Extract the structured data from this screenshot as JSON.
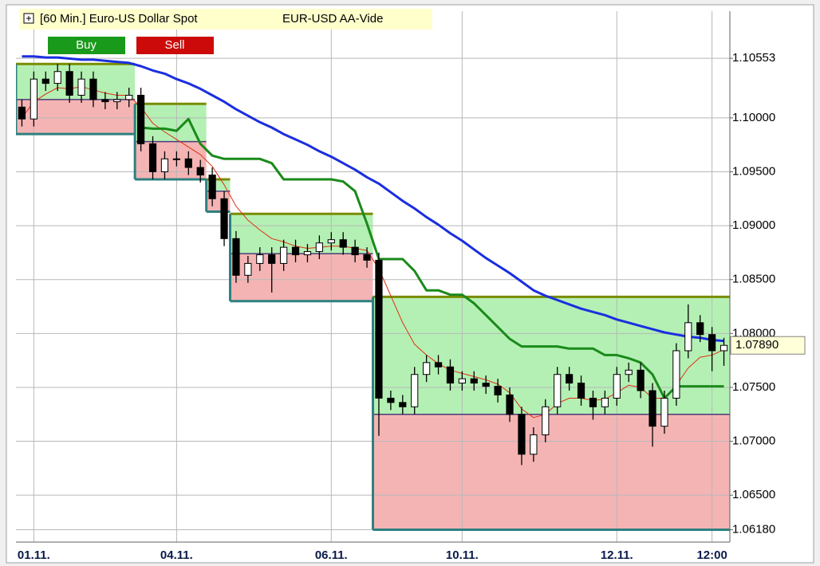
{
  "buttons": [
    "Buy",
    "Sell"
  ],
  "chart_data": {
    "type": "candlestick",
    "title": "[60 Min.] Euro-US Dollar Spot",
    "subtitle": "EUR-USD AA-Vide",
    "categories": [
      null,
      "01.11.",
      null,
      null,
      null,
      null,
      null,
      null,
      null,
      null,
      null,
      null,
      null,
      "04.11.",
      null,
      null,
      null,
      null,
      null,
      null,
      null,
      null,
      null,
      null,
      null,
      null,
      "06.11.",
      null,
      null,
      null,
      null,
      null,
      null,
      null,
      null,
      null,
      null,
      "10.11.",
      null,
      null,
      null,
      null,
      null,
      null,
      null,
      null,
      null,
      null,
      null,
      null,
      "12.11.",
      null,
      null,
      null,
      null,
      null,
      null,
      null,
      "12:00",
      null
    ],
    "open": [
      1.101,
      1.0999,
      1.1036,
      1.1032,
      1.1043,
      1.1021,
      1.1036,
      1.1017,
      1.1015,
      1.1017,
      1.1021,
      1.0976,
      1.095,
      1.0962,
      1.0962,
      1.0954,
      1.0947,
      1.0925,
      1.0888,
      1.0854,
      1.0865,
      1.0873,
      1.0865,
      1.088,
      1.0873,
      1.0876,
      1.0884,
      1.0887,
      1.088,
      1.0873,
      1.0868,
      1.074,
      1.0736,
      1.0732,
      1.0762,
      1.0773,
      1.0769,
      1.0754,
      1.0758,
      1.0754,
      1.0751,
      1.0743,
      1.0725,
      1.0688,
      1.0706,
      1.0732,
      1.0762,
      1.0754,
      1.074,
      1.0732,
      1.074,
      1.0762,
      1.0766,
      1.0747,
      1.0714,
      1.074,
      1.0784,
      1.081,
      1.0799,
      1.0784
    ],
    "high": [
      1.1017,
      1.1043,
      1.1043,
      1.105,
      1.105,
      1.1043,
      1.1043,
      1.1024,
      1.1024,
      1.1028,
      1.1028,
      1.0983,
      1.0969,
      1.0969,
      1.0969,
      1.0961,
      1.0954,
      1.0932,
      1.0895,
      1.0872,
      1.088,
      1.088,
      1.0887,
      1.0887,
      1.0883,
      1.0891,
      1.0894,
      1.0894,
      1.0887,
      1.088,
      1.0875,
      1.0747,
      1.0743,
      1.0769,
      1.078,
      1.078,
      1.0776,
      1.0765,
      1.0765,
      1.0761,
      1.0758,
      1.075,
      1.0732,
      1.0713,
      1.0739,
      1.0769,
      1.0769,
      1.0761,
      1.0747,
      1.0747,
      1.0769,
      1.0773,
      1.0773,
      1.0754,
      1.0747,
      1.0791,
      1.0827,
      1.0817,
      1.0806,
      1.0796
    ],
    "low": [
      1.0992,
      1.0992,
      1.1025,
      1.1025,
      1.1014,
      1.1014,
      1.101,
      1.1008,
      1.1008,
      1.101,
      1.0969,
      1.0943,
      1.0943,
      1.0955,
      1.0947,
      1.094,
      1.0918,
      1.0881,
      1.0847,
      1.0847,
      1.0858,
      1.0838,
      1.0858,
      1.0866,
      1.0866,
      1.0869,
      1.0877,
      1.0873,
      1.0866,
      1.0861,
      1.0705,
      1.0729,
      1.0725,
      1.0725,
      1.0755,
      1.0762,
      1.0747,
      1.0747,
      1.0747,
      1.0744,
      1.0736,
      1.0718,
      1.0678,
      1.0681,
      1.0699,
      1.0725,
      1.0747,
      1.0733,
      1.072,
      1.0725,
      1.0733,
      1.0755,
      1.074,
      1.0695,
      1.0707,
      1.0733,
      1.0777,
      1.0792,
      1.0765,
      1.077
    ],
    "close": [
      1.0999,
      1.1036,
      1.1032,
      1.1043,
      1.1021,
      1.1036,
      1.1017,
      1.1015,
      1.1017,
      1.1021,
      1.0976,
      1.095,
      1.0962,
      1.0962,
      1.0954,
      1.0947,
      1.0925,
      1.0888,
      1.0854,
      1.0865,
      1.0873,
      1.0865,
      1.088,
      1.0873,
      1.0876,
      1.0884,
      1.0887,
      1.088,
      1.0873,
      1.0868,
      1.074,
      1.0736,
      1.0732,
      1.0762,
      1.0773,
      1.0769,
      1.0754,
      1.0758,
      1.0754,
      1.0751,
      1.0743,
      1.0725,
      1.0688,
      1.0706,
      1.0732,
      1.0762,
      1.0754,
      1.074,
      1.0732,
      1.074,
      1.0762,
      1.0766,
      1.0747,
      1.0714,
      1.074,
      1.0784,
      1.081,
      1.0799,
      1.0784,
      1.0789
    ],
    "up_color": "#ffffff",
    "down_color": "#000000",
    "lines": [
      {
        "color": "#e03010",
        "width": 1,
        "values": [
          1.1,
          1.1015,
          1.1022,
          1.1028,
          1.1027,
          1.1029,
          1.1026,
          1.1023,
          1.1021,
          1.1021,
          1.101,
          1.0995,
          1.0987,
          1.098,
          1.0973,
          1.0966,
          1.0955,
          1.0938,
          1.0918,
          1.0905,
          1.0896,
          1.0888,
          1.0885,
          1.0881,
          1.0879,
          1.088,
          1.0881,
          1.0881,
          1.0879,
          1.0877,
          1.086,
          1.0835,
          1.081,
          1.079,
          1.078,
          1.0772,
          1.0766,
          1.0763,
          1.076,
          1.0757,
          1.0753,
          1.0745,
          1.073,
          1.0722,
          1.0725,
          1.0735,
          1.074,
          1.074,
          1.0738,
          1.0739,
          1.0745,
          1.0752,
          1.075,
          1.074,
          1.074,
          1.0752,
          1.0768,
          1.0778,
          1.078,
          1.0785
        ]
      },
      {
        "color": "#1a8a1a",
        "width": 3,
        "values": [
          null,
          null,
          null,
          null,
          null,
          null,
          null,
          null,
          null,
          null,
          1.0991,
          1.099,
          1.099,
          1.0988,
          1.0999,
          1.0976,
          1.0965,
          1.0962,
          1.0962,
          1.0962,
          1.0962,
          1.0958,
          1.0943,
          1.0943,
          1.0943,
          1.0943,
          1.0943,
          1.0941,
          1.0932,
          1.0902,
          1.0869,
          1.0869,
          1.0869,
          1.0858,
          1.084,
          1.084,
          1.0836,
          1.0836,
          1.0828,
          1.0817,
          1.0806,
          1.0795,
          1.0788,
          1.0788,
          1.0788,
          1.0788,
          1.0786,
          1.0786,
          1.0786,
          1.078,
          1.078,
          1.0777,
          1.0773,
          1.0762,
          1.074,
          1.0751,
          1.0751,
          1.0751,
          1.0751,
          1.0751
        ]
      },
      {
        "color": "#1a2ee0",
        "width": 3,
        "values": [
          1.1057,
          1.1057,
          1.1056,
          1.1056,
          1.1055,
          1.1054,
          1.1054,
          1.1053,
          1.1052,
          1.1051,
          1.1048,
          1.1044,
          1.1041,
          1.1036,
          1.1032,
          1.1027,
          1.1021,
          1.1015,
          1.1008,
          1.1002,
          1.0996,
          1.0991,
          1.0985,
          1.098,
          1.0975,
          1.0969,
          1.0964,
          1.0958,
          1.0952,
          1.0945,
          1.0939,
          1.0931,
          1.0923,
          1.0916,
          1.0908,
          1.0901,
          1.0893,
          1.0886,
          1.0878,
          1.087,
          1.0863,
          1.0856,
          1.0848,
          1.084,
          1.0835,
          1.0831,
          1.0827,
          1.0823,
          1.082,
          1.0817,
          1.0813,
          1.081,
          1.0807,
          1.0804,
          1.0801,
          1.0799,
          1.0797,
          1.0796,
          1.0794,
          1.0793
        ]
      }
    ],
    "zones": [
      {
        "start": 0,
        "end": 10,
        "top": 1.105,
        "middle": 1.1017,
        "bottom": 1.0985
      },
      {
        "start": 10,
        "end": 16,
        "top": 1.1013,
        "middle": 1.0978,
        "bottom": 1.0943
      },
      {
        "start": 16,
        "end": 18,
        "top": 1.0943,
        "middle": 1.0932,
        "bottom": 1.0913
      },
      {
        "start": 18,
        "end": 30,
        "top": 1.0911,
        "middle": 1.0874,
        "bottom": 1.083
      },
      {
        "start": 30,
        "end": 60,
        "top": 1.0834,
        "middle": 1.0725,
        "bottom": 1.0618
      }
    ],
    "zone_upper_color": "#b4f0b4",
    "zone_lower_color": "#f4b4b4",
    "last_price": {
      "value": 1.0789,
      "label": "1.07890"
    },
    "ylim": [
      1.06065,
      1.1099
    ],
    "yticks": [
      {
        "value": 1.0618,
        "label": "1.06180"
      },
      {
        "value": 1.065,
        "label": "1.06500"
      },
      {
        "value": 1.07,
        "label": "1.07000"
      },
      {
        "value": 1.075,
        "label": "1.07500"
      },
      {
        "value": 1.08,
        "label": "1.08000"
      },
      {
        "value": 1.085,
        "label": "1.08500"
      },
      {
        "value": 1.09,
        "label": "1.09000"
      },
      {
        "value": 1.095,
        "label": "1.09500"
      },
      {
        "value": 1.1,
        "label": "1.10000"
      },
      {
        "value": 1.10553,
        "label": "1.10553"
      }
    ],
    "grid": true
  }
}
